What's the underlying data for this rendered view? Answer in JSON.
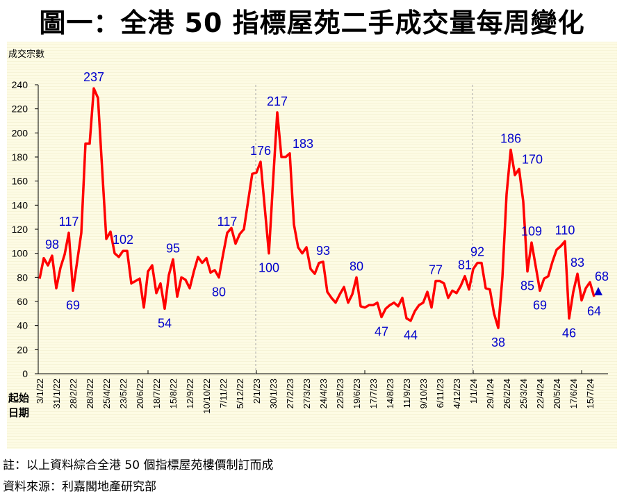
{
  "title": "圖一：全港 50 指標屋苑二手成交量每周變化",
  "notes": {
    "note1": "註：以上資料綜合全港 50 個指標屋苑樓價制訂而成",
    "note2": "資料來源：利嘉閣地產研究部"
  },
  "chart_data": {
    "type": "line",
    "ylabel": "成交宗數",
    "xlabel": "起始日期",
    "xlabel_lines": [
      "起始",
      "日期"
    ],
    "ylim": [
      0,
      240
    ],
    "yticks": [
      0,
      20,
      40,
      60,
      80,
      100,
      120,
      140,
      160,
      180,
      200,
      220,
      240
    ],
    "frequency": "weekly",
    "start_week": "3/1/22",
    "end_week": "22/7/24",
    "xtick_labels": [
      "3/1/22",
      "31/1/22",
      "28/2/22",
      "28/3/22",
      "25/4/22",
      "23/5/22",
      "20/6/22",
      "18/7/22",
      "15/8/22",
      "12/9/22",
      "10/10/22",
      "7/11/22",
      "5/12/22",
      "2/1/23",
      "30/1/23",
      "27/2/23",
      "27/3/23",
      "24/4/23",
      "22/5/23",
      "19/6/23",
      "17/7/23",
      "14/8/23",
      "11/9/23",
      "9/10/23",
      "6/11/23",
      "4/12/23",
      "1/1/24",
      "29/1/24",
      "26/2/24",
      "25/3/24",
      "22/4/24",
      "20/5/24",
      "17/6/24",
      "15/7/24"
    ],
    "year_dividers": [
      "2/1/23",
      "1/1/24"
    ],
    "grid": false,
    "line_color": "#ff0000",
    "label_color": "#0000cc",
    "background_color": "#fdfbe4",
    "values": [
      79,
      96,
      90,
      98,
      71,
      88,
      99,
      117,
      69,
      93,
      117,
      191,
      191,
      237,
      229,
      170,
      112,
      118,
      100,
      97,
      102,
      102,
      75,
      77,
      79,
      55,
      85,
      90,
      67,
      75,
      54,
      82,
      95,
      64,
      80,
      78,
      71,
      85,
      97,
      92,
      96,
      84,
      86,
      80,
      99,
      117,
      121,
      108,
      116,
      120,
      143,
      166,
      167,
      176,
      138,
      100,
      160,
      217,
      180,
      180,
      183,
      124,
      105,
      100,
      105,
      87,
      83,
      92,
      93,
      68,
      63,
      59,
      66,
      72,
      59,
      66,
      80,
      56,
      55,
      57,
      57,
      59,
      47,
      54,
      57,
      59,
      56,
      63,
      46,
      44,
      52,
      57,
      59,
      68,
      55,
      77,
      77,
      75,
      63,
      69,
      67,
      73,
      81,
      70,
      87,
      92,
      92,
      71,
      70,
      50,
      38,
      80,
      149,
      186,
      165,
      170,
      143,
      85,
      109,
      89,
      69,
      79,
      81,
      93,
      103,
      106,
      110,
      46,
      68,
      83,
      61,
      71,
      76,
      64
    ],
    "annotations": [
      {
        "week": "24/1/22",
        "text": "98",
        "pos": "above"
      },
      {
        "week": "21/2/22",
        "text": "117",
        "pos": "above"
      },
      {
        "week": "28/2/22",
        "text": "69",
        "pos": "below"
      },
      {
        "week": "4/4/22",
        "text": "237",
        "pos": "above"
      },
      {
        "week": "23/5/22",
        "text": "102",
        "pos": "above"
      },
      {
        "week": "1/8/22",
        "text": "54",
        "pos": "below"
      },
      {
        "week": "15/8/22",
        "text": "95",
        "pos": "above"
      },
      {
        "week": "31/10/22",
        "text": "80",
        "pos": "below"
      },
      {
        "week": "14/11/22",
        "text": "117",
        "pos": "above"
      },
      {
        "week": "9/1/23",
        "text": "176",
        "pos": "above"
      },
      {
        "week": "23/1/23",
        "text": "100",
        "pos": "below"
      },
      {
        "week": "6/2/23",
        "text": "217",
        "pos": "above"
      },
      {
        "week": "27/2/23",
        "text": "183",
        "pos": "right"
      },
      {
        "week": "24/4/23",
        "text": "93",
        "pos": "above"
      },
      {
        "week": "19/6/23",
        "text": "80",
        "pos": "above"
      },
      {
        "week": "31/7/23",
        "text": "47",
        "pos": "below"
      },
      {
        "week": "18/9/23",
        "text": "44",
        "pos": "below"
      },
      {
        "week": "30/10/23",
        "text": "77",
        "pos": "above"
      },
      {
        "week": "18/12/23",
        "text": "81",
        "pos": "above"
      },
      {
        "week": "8/1/24",
        "text": "92",
        "pos": "above"
      },
      {
        "week": "12/2/24",
        "text": "38",
        "pos": "below"
      },
      {
        "week": "4/3/24",
        "text": "186",
        "pos": "above"
      },
      {
        "week": "18/3/24",
        "text": "170",
        "pos": "right"
      },
      {
        "week": "1/4/24",
        "text": "85",
        "pos": "below"
      },
      {
        "week": "8/4/24",
        "text": "109",
        "pos": "above"
      },
      {
        "week": "22/4/24",
        "text": "69",
        "pos": "below"
      },
      {
        "week": "3/6/24",
        "text": "110",
        "pos": "above"
      },
      {
        "week": "10/6/24",
        "text": "46",
        "pos": "below"
      },
      {
        "week": "24/6/24",
        "text": "83",
        "pos": "above"
      },
      {
        "week": "22/7/24",
        "text": "64",
        "pos": "below"
      }
    ],
    "annotation_index": [
      3,
      7,
      8,
      13,
      20,
      30,
      32,
      43,
      45,
      53,
      55,
      57,
      60,
      68,
      76,
      82,
      89,
      95,
      102,
      105,
      110,
      113,
      115,
      117,
      118,
      120,
      126,
      127,
      129,
      133
    ],
    "marker": {
      "shape": "triangle",
      "color": "#0000cc",
      "value": 68,
      "text": "68"
    }
  }
}
